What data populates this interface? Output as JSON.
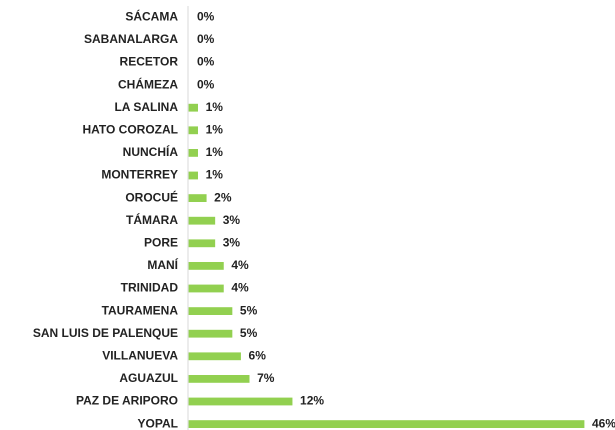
{
  "chart_data": {
    "type": "bar",
    "orientation": "horizontal",
    "categories": [
      "SÁCAMA",
      "SABANALARGA",
      "RECETOR",
      "CHÁMEZA",
      "LA SALINA",
      "HATO COROZAL",
      "NUNCHÍA",
      "MONTERREY",
      "OROCUÉ",
      "TÁMARA",
      "PORE",
      "MANÍ",
      "TRINIDAD",
      "TAURAMENA",
      "SAN LUIS DE PALENQUE",
      "VILLANUEVA",
      "AGUAZUL",
      "PAZ DE ARIPORO",
      "YOPAL"
    ],
    "values": [
      0,
      0,
      0,
      0,
      1,
      1,
      1,
      1,
      2,
      3,
      3,
      4,
      4,
      5,
      5,
      6,
      7,
      12,
      46
    ],
    "value_labels": [
      "0%",
      "0%",
      "0%",
      "0%",
      "1%",
      "1%",
      "1%",
      "1%",
      "2%",
      "3%",
      "3%",
      "4%",
      "4%",
      "5%",
      "5%",
      "6%",
      "7%",
      "12%",
      "46%"
    ],
    "color": "#92d050"
  }
}
